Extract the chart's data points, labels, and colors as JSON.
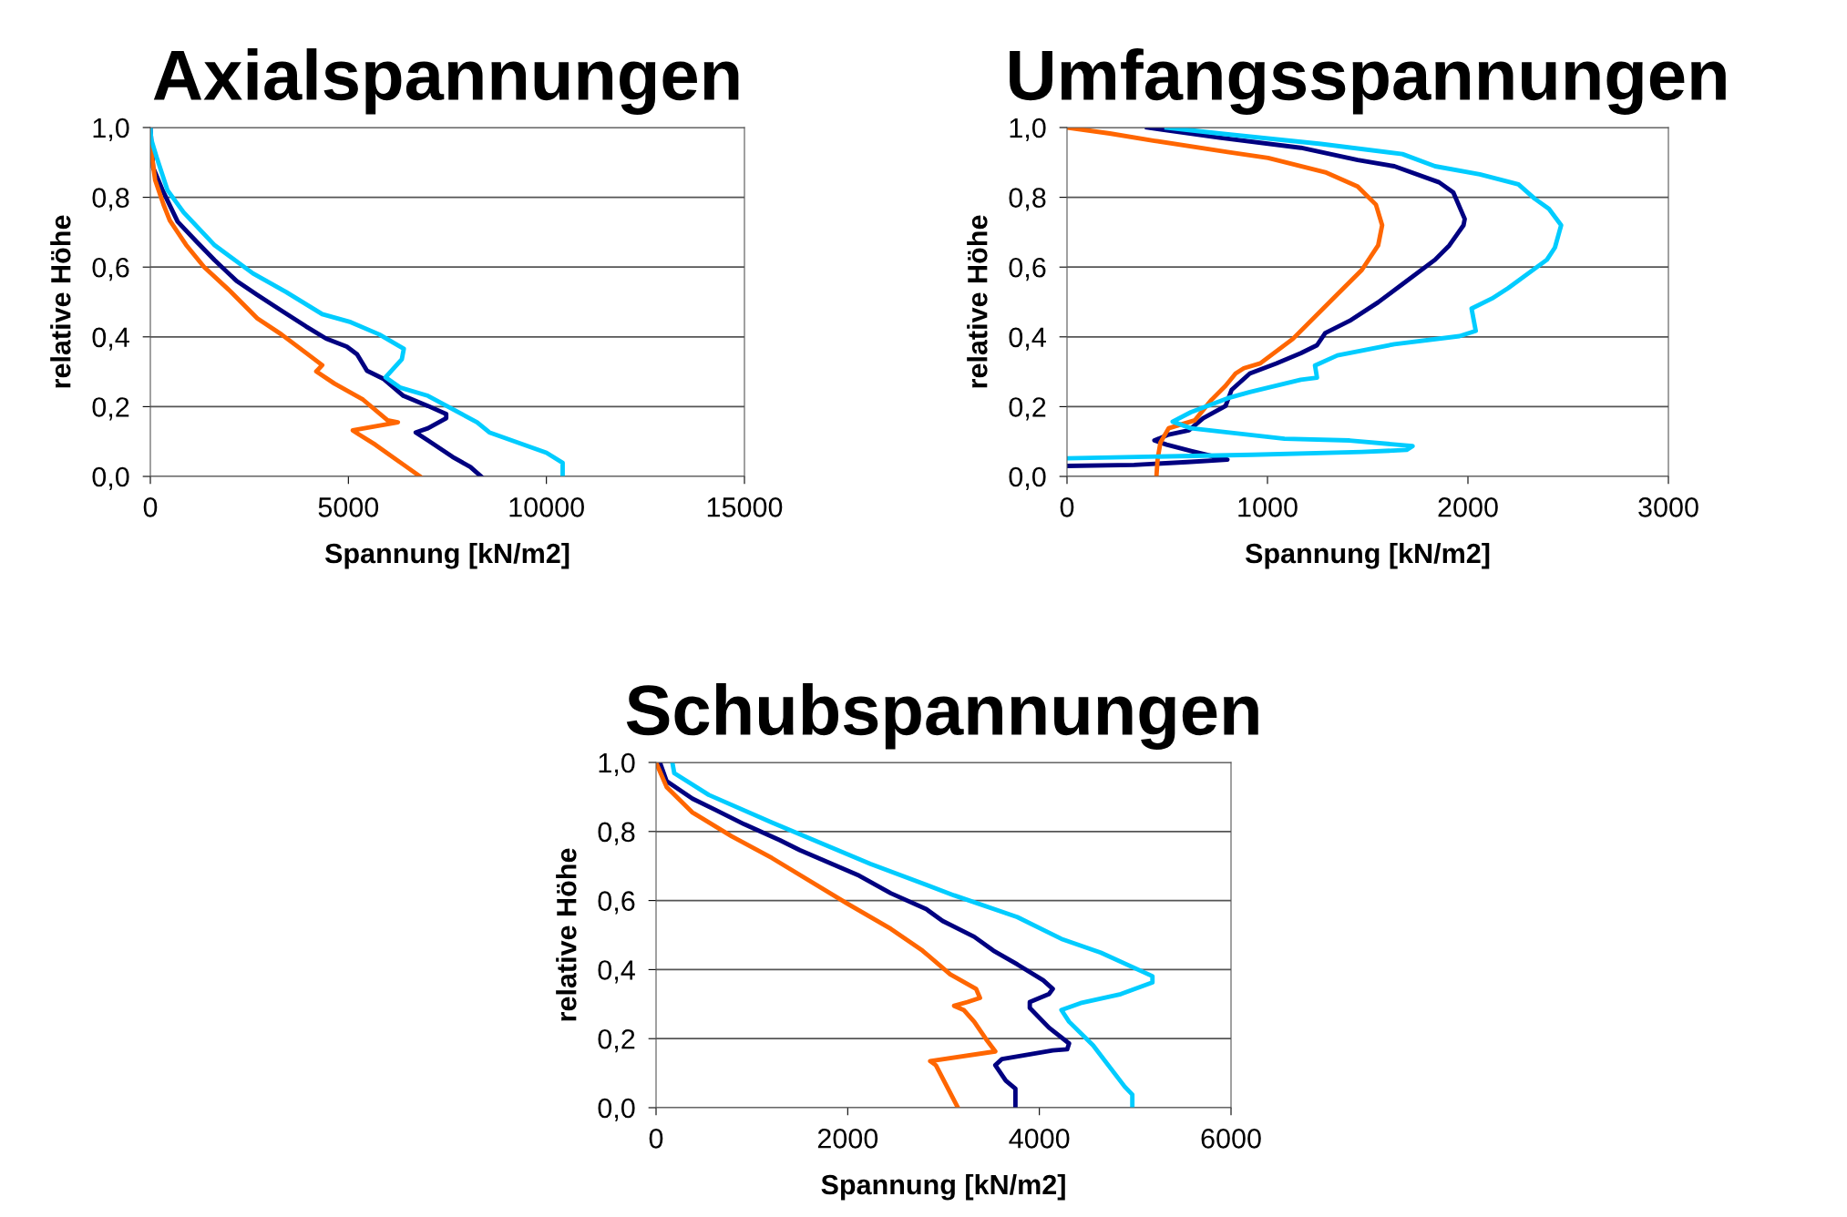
{
  "chart_data": [
    {
      "type": "line",
      "title": "Axialspannungen",
      "xlabel": "Spannung [kN/m2]",
      "ylabel": "relative Höhe",
      "xlim": [
        0,
        15000
      ],
      "xticks": [
        0,
        5000,
        10000,
        15000
      ],
      "ylim": [
        0,
        1
      ],
      "yticks": [
        {
          "value": 0,
          "label": "0,0"
        },
        {
          "value": 0.2,
          "label": "0,2"
        },
        {
          "value": 0.4,
          "label": "0,4"
        },
        {
          "value": 0.6,
          "label": "0,6"
        },
        {
          "value": 0.8,
          "label": "0,8"
        },
        {
          "value": 1,
          "label": "1,0"
        }
      ],
      "grid": "y",
      "series": [
        {
          "color": "#000080",
          "x": [
            0,
            70,
            330,
            690,
            1150,
            1620,
            2180,
            2700,
            3310,
            3930,
            4440,
            4960,
            5220,
            5470,
            5880,
            6390,
            7010,
            7470,
            7470,
            7010,
            6700,
            7010,
            7630,
            8080,
            8350
          ],
          "values": [
            1.0,
            0.885,
            0.815,
            0.73,
            0.675,
            0.62,
            0.56,
            0.52,
            0.475,
            0.43,
            0.395,
            0.372,
            0.35,
            0.303,
            0.28,
            0.231,
            0.202,
            0.179,
            0.167,
            0.138,
            0.126,
            0.103,
            0.056,
            0.027,
            0
          ]
        },
        {
          "color": "#ff6600",
          "x": [
            0,
            120,
            330,
            490,
            900,
            1360,
            1980,
            2700,
            3310,
            3930,
            4340,
            4190,
            4650,
            5370,
            5990,
            6250,
            5110,
            5270,
            5680,
            6400,
            6810
          ],
          "values": [
            0.95,
            0.85,
            0.78,
            0.734,
            0.664,
            0.6,
            0.535,
            0.453,
            0.407,
            0.354,
            0.319,
            0.301,
            0.266,
            0.22,
            0.161,
            0.155,
            0.132,
            0.12,
            0.091,
            0.033,
            0
          ]
        },
        {
          "color": "#00ccff",
          "x": [
            0,
            20,
            175,
            430,
            840,
            1610,
            2590,
            3420,
            4340,
            5060,
            5780,
            6400,
            6350,
            5940,
            6300,
            7010,
            8250,
            8560,
            10000,
            10410,
            10410
          ],
          "values": [
            1.0,
            0.967,
            0.909,
            0.821,
            0.757,
            0.664,
            0.582,
            0.529,
            0.465,
            0.442,
            0.407,
            0.366,
            0.336,
            0.284,
            0.255,
            0.231,
            0.155,
            0.126,
            0.068,
            0.039,
            0
          ]
        }
      ]
    },
    {
      "type": "line",
      "title": "Umfangsspannungen",
      "xlabel": "Spannung [kN/m2]",
      "ylabel": "relative Höhe",
      "xlim": [
        0,
        3000
      ],
      "xticks": [
        0,
        1000,
        2000,
        3000
      ],
      "ylim": [
        0,
        1
      ],
      "yticks": [
        {
          "value": 0,
          "label": "0,0"
        },
        {
          "value": 0.2,
          "label": "0,2"
        },
        {
          "value": 0.4,
          "label": "0,4"
        },
        {
          "value": 0.6,
          "label": "0,6"
        },
        {
          "value": 0.8,
          "label": "0,8"
        },
        {
          "value": 1,
          "label": "1,0"
        }
      ],
      "grid": "y",
      "series": [
        {
          "color": "#000080",
          "x": [
            400,
            760,
            1166,
            1450,
            1633,
            1856,
            1927,
            1984,
            1978,
            1907,
            1836,
            1673,
            1552,
            1410,
            1288,
            1247,
            1166,
            1044,
            912,
            821,
            791,
            679,
            608,
            507,
            436,
            497,
            619,
            800,
            599,
            335,
            0
          ],
          "values": [
            1.0,
            0.971,
            0.942,
            0.907,
            0.889,
            0.843,
            0.814,
            0.738,
            0.72,
            0.662,
            0.621,
            0.551,
            0.499,
            0.446,
            0.411,
            0.376,
            0.353,
            0.324,
            0.295,
            0.248,
            0.202,
            0.167,
            0.132,
            0.12,
            0.103,
            0.091,
            0.073,
            0.048,
            0.041,
            0.033,
            0.03
          ]
        },
        {
          "color": "#ff6600",
          "x": [
            0,
            213,
            436,
            801,
            1003,
            1288,
            1450,
            1541,
            1572,
            1552,
            1471,
            1349,
            1126,
            964,
            882,
            841,
            791,
            720,
            638,
            507,
            466,
            452,
            446
          ],
          "values": [
            1.0,
            0.983,
            0.962,
            0.93,
            0.913,
            0.872,
            0.831,
            0.779,
            0.72,
            0.662,
            0.592,
            0.522,
            0.394,
            0.324,
            0.31,
            0.295,
            0.26,
            0.219,
            0.161,
            0.138,
            0.097,
            0.05,
            0
          ]
        },
        {
          "color": "#00ccff",
          "x": [
            497,
            760,
            1267,
            1673,
            1836,
            2059,
            2252,
            2333,
            2404,
            2465,
            2434,
            2394,
            2201,
            2120,
            2018,
            2039,
            1958,
            1633,
            1349,
            1237,
            1247,
            1166,
            912,
            801,
            618,
            527,
            618,
            1085,
            1410,
            1724,
            1694,
            1471,
            923,
            0
          ],
          "values": [
            1.0,
            0.983,
            0.953,
            0.924,
            0.889,
            0.866,
            0.837,
            0.796,
            0.767,
            0.72,
            0.656,
            0.621,
            0.54,
            0.51,
            0.481,
            0.417,
            0.402,
            0.379,
            0.347,
            0.318,
            0.283,
            0.277,
            0.242,
            0.224,
            0.184,
            0.157,
            0.138,
            0.108,
            0.103,
            0.087,
            0.076,
            0.07,
            0.062,
            0.052
          ]
        }
      ]
    },
    {
      "type": "line",
      "title": "Schubspannungen",
      "xlabel": "Spannung [kN/m2]",
      "ylabel": "relative Höhe",
      "xlim": [
        0,
        6000
      ],
      "xticks": [
        0,
        2000,
        4000,
        6000
      ],
      "ylim": [
        0,
        1
      ],
      "yticks": [
        {
          "value": 0,
          "label": "0,0"
        },
        {
          "value": 0.2,
          "label": "0,2"
        },
        {
          "value": 0.4,
          "label": "0,4"
        },
        {
          "value": 0.6,
          "label": "0,6"
        },
        {
          "value": 0.8,
          "label": "0,8"
        },
        {
          "value": 1,
          "label": "1,0"
        }
      ],
      "grid": "y",
      "series": [
        {
          "color": "#000080",
          "x": [
            40,
            110,
            380,
            630,
            920,
            1290,
            1500,
            2120,
            2450,
            2820,
            2990,
            3320,
            3520,
            3770,
            4040,
            4140,
            4100,
            3900,
            3900,
            4100,
            4310,
            4290,
            4140,
            3610,
            3540,
            3650,
            3750,
            3750
          ],
          "values": [
            1.0,
            0.946,
            0.895,
            0.861,
            0.821,
            0.775,
            0.746,
            0.672,
            0.621,
            0.575,
            0.541,
            0.495,
            0.455,
            0.415,
            0.369,
            0.344,
            0.329,
            0.306,
            0.289,
            0.232,
            0.186,
            0.169,
            0.166,
            0.141,
            0.123,
            0.078,
            0.055,
            0
          ]
        },
        {
          "color": "#ff6600",
          "x": [
            0,
            110,
            380,
            790,
            1210,
            1990,
            2450,
            2780,
            3070,
            3340,
            3380,
            3250,
            3110,
            3210,
            3320,
            3440,
            3540,
            2860,
            2920,
            3150
          ],
          "values": [
            1.0,
            0.929,
            0.855,
            0.786,
            0.723,
            0.592,
            0.518,
            0.455,
            0.386,
            0.344,
            0.318,
            0.306,
            0.295,
            0.283,
            0.249,
            0.2,
            0.163,
            0.135,
            0.123,
            0
          ]
        },
        {
          "color": "#00ccff",
          "x": [
            170,
            190,
            550,
            1210,
            2240,
            3110,
            3770,
            4230,
            4640,
            5180,
            5180,
            4850,
            4430,
            4230,
            4310,
            4560,
            4890,
            4970,
            4970
          ],
          "values": [
            1.0,
            0.969,
            0.906,
            0.826,
            0.706,
            0.615,
            0.552,
            0.489,
            0.449,
            0.381,
            0.363,
            0.329,
            0.303,
            0.283,
            0.249,
            0.181,
            0.061,
            0.038,
            0
          ]
        }
      ]
    }
  ]
}
